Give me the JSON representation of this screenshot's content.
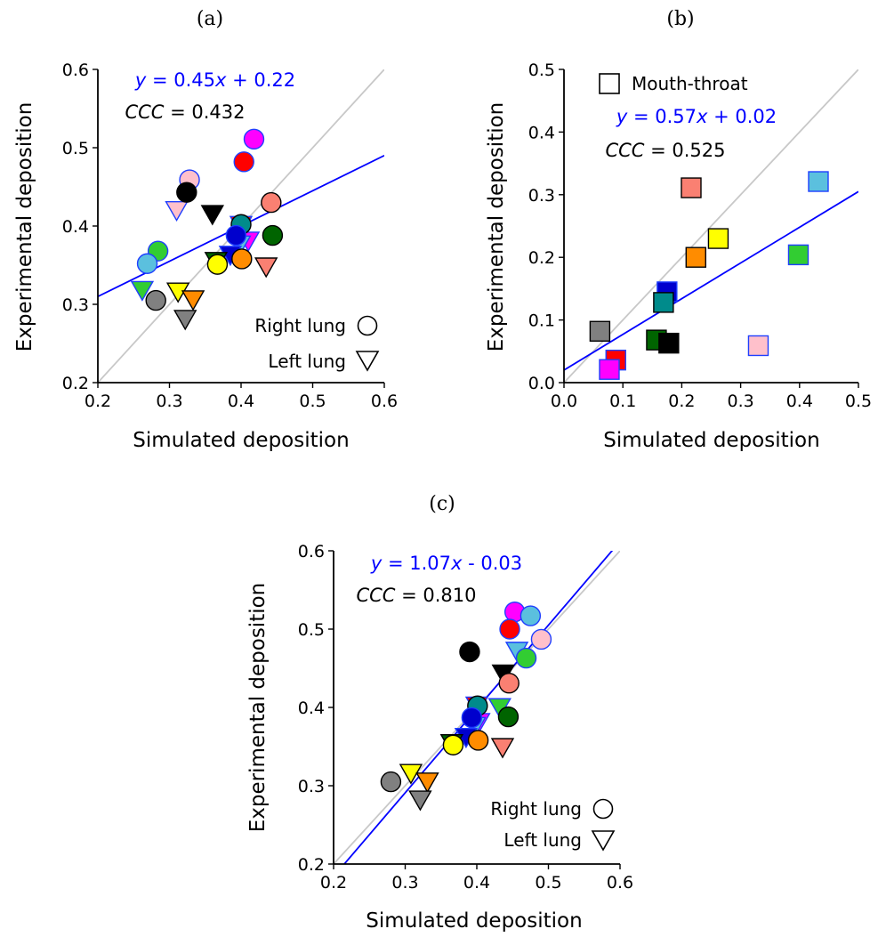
{
  "colors": {
    "fit_line": "#0000ff",
    "identity_line": "#c8c8c8",
    "axis": "#000000"
  },
  "chart_data": [
    {
      "type": "scatter",
      "panel_label": "(a)",
      "xlabel": "Simulated deposition",
      "ylabel": "Experimental deposition",
      "xlim": [
        0.2,
        0.6
      ],
      "ylim": [
        0.2,
        0.6
      ],
      "xticks": [
        "0.2",
        "0.3",
        "0.4",
        "0.5",
        "0.6"
      ],
      "yticks": [
        "0.2",
        "0.3",
        "0.4",
        "0.5",
        "0.6"
      ],
      "grid": false,
      "fit_text": "y = 0.45x + 0.22",
      "fit": {
        "slope": 0.45,
        "intercept": 0.22
      },
      "ccc_text": "CCC = 0.432",
      "legend": [
        {
          "label": "Right lung",
          "marker": "circle"
        },
        {
          "label": "Left lung",
          "marker": "triangle-down"
        }
      ],
      "series": [
        {
          "marker": "circle",
          "points": [
            {
              "x": 0.418,
              "y": 0.511,
              "color": "#ff00ff"
            },
            {
              "x": 0.404,
              "y": 0.482,
              "color": "#ff0000"
            },
            {
              "x": 0.328,
              "y": 0.459,
              "color": "#ffc0cb"
            },
            {
              "x": 0.324,
              "y": 0.443,
              "color": "#000000"
            },
            {
              "x": 0.442,
              "y": 0.43,
              "color": "#fa8072"
            },
            {
              "x": 0.4,
              "y": 0.402,
              "color": "#008b8b"
            },
            {
              "x": 0.444,
              "y": 0.388,
              "color": "#006400"
            },
            {
              "x": 0.393,
              "y": 0.388,
              "color": "#0000cd"
            },
            {
              "x": 0.284,
              "y": 0.368,
              "color": "#32cd32"
            },
            {
              "x": 0.269,
              "y": 0.352,
              "color": "#5bc0de"
            },
            {
              "x": 0.401,
              "y": 0.358,
              "color": "#ff8c00"
            },
            {
              "x": 0.367,
              "y": 0.351,
              "color": "#ffff00"
            },
            {
              "x": 0.281,
              "y": 0.305,
              "color": "#808080"
            }
          ]
        },
        {
          "marker": "triangle-down",
          "points": [
            {
              "x": 0.31,
              "y": 0.422,
              "color": "#ffc0cb"
            },
            {
              "x": 0.36,
              "y": 0.417,
              "color": "#000000"
            },
            {
              "x": 0.4,
              "y": 0.403,
              "color": "#ff0000"
            },
            {
              "x": 0.41,
              "y": 0.383,
              "color": "#ff00ff"
            },
            {
              "x": 0.398,
              "y": 0.378,
              "color": "#5bc0de"
            },
            {
              "x": 0.385,
              "y": 0.365,
              "color": "#0000cd"
            },
            {
              "x": 0.365,
              "y": 0.357,
              "color": "#006400"
            },
            {
              "x": 0.435,
              "y": 0.35,
              "color": "#fa8072"
            },
            {
              "x": 0.262,
              "y": 0.32,
              "color": "#32cd32"
            },
            {
              "x": 0.312,
              "y": 0.318,
              "color": "#ffff00"
            },
            {
              "x": 0.333,
              "y": 0.308,
              "color": "#ff8c00"
            },
            {
              "x": 0.322,
              "y": 0.283,
              "color": "#808080"
            }
          ]
        }
      ]
    },
    {
      "type": "scatter",
      "panel_label": "(b)",
      "xlabel": "Simulated deposition",
      "ylabel": "Experimental deposition",
      "xlim": [
        0.0,
        0.5
      ],
      "ylim": [
        0.0,
        0.5
      ],
      "xticks": [
        "0.0",
        "0.1",
        "0.2",
        "0.3",
        "0.4",
        "0.5"
      ],
      "yticks": [
        "0.0",
        "0.1",
        "0.2",
        "0.3",
        "0.4",
        "0.5"
      ],
      "grid": false,
      "fit_text": "y = 0.57x + 0.02",
      "fit": {
        "slope": 0.57,
        "intercept": 0.02
      },
      "ccc_text": "CCC = 0.525",
      "legend": [
        {
          "label": "Mouth-throat",
          "marker": "square"
        }
      ],
      "series": [
        {
          "marker": "square",
          "points": [
            {
              "x": 0.432,
              "y": 0.321,
              "color": "#5bc0de"
            },
            {
              "x": 0.216,
              "y": 0.311,
              "color": "#fa8072"
            },
            {
              "x": 0.262,
              "y": 0.23,
              "color": "#ffff00"
            },
            {
              "x": 0.224,
              "y": 0.2,
              "color": "#ff8c00"
            },
            {
              "x": 0.398,
              "y": 0.204,
              "color": "#32cd32"
            },
            {
              "x": 0.175,
              "y": 0.145,
              "color": "#0000cd"
            },
            {
              "x": 0.169,
              "y": 0.128,
              "color": "#008b8b"
            },
            {
              "x": 0.061,
              "y": 0.082,
              "color": "#808080"
            },
            {
              "x": 0.157,
              "y": 0.068,
              "color": "#006400"
            },
            {
              "x": 0.178,
              "y": 0.063,
              "color": "#000000"
            },
            {
              "x": 0.33,
              "y": 0.059,
              "color": "#ffc0cb"
            },
            {
              "x": 0.088,
              "y": 0.036,
              "color": "#ff0000"
            },
            {
              "x": 0.077,
              "y": 0.021,
              "color": "#ff00ff"
            }
          ]
        }
      ]
    },
    {
      "type": "scatter",
      "panel_label": "(c)",
      "xlabel": "Simulated deposition",
      "ylabel": "Experimental deposition",
      "xlim": [
        0.2,
        0.6
      ],
      "ylim": [
        0.2,
        0.6
      ],
      "xticks": [
        "0.2",
        "0.3",
        "0.4",
        "0.5",
        "0.6"
      ],
      "yticks": [
        "0.2",
        "0.3",
        "0.4",
        "0.5",
        "0.6"
      ],
      "grid": false,
      "fit_text": "y = 1.07x - 0.03",
      "fit": {
        "slope": 1.07,
        "intercept": -0.03
      },
      "ccc_text": "CCC = 0.810",
      "legend": [
        {
          "label": "Right lung",
          "marker": "circle"
        },
        {
          "label": "Left lung",
          "marker": "triangle-down"
        }
      ],
      "series": [
        {
          "marker": "circle",
          "points": [
            {
              "x": 0.453,
              "y": 0.522,
              "color": "#ff00ff"
            },
            {
              "x": 0.475,
              "y": 0.517,
              "color": "#5bc0de"
            },
            {
              "x": 0.446,
              "y": 0.5,
              "color": "#ff0000"
            },
            {
              "x": 0.49,
              "y": 0.487,
              "color": "#ffc0cb"
            },
            {
              "x": 0.39,
              "y": 0.471,
              "color": "#000000"
            },
            {
              "x": 0.469,
              "y": 0.463,
              "color": "#32cd32"
            },
            {
              "x": 0.445,
              "y": 0.431,
              "color": "#fa8072"
            },
            {
              "x": 0.401,
              "y": 0.402,
              "color": "#008b8b"
            },
            {
              "x": 0.444,
              "y": 0.388,
              "color": "#006400"
            },
            {
              "x": 0.393,
              "y": 0.387,
              "color": "#0000cd"
            },
            {
              "x": 0.402,
              "y": 0.358,
              "color": "#ff8c00"
            },
            {
              "x": 0.367,
              "y": 0.352,
              "color": "#ffff00"
            },
            {
              "x": 0.28,
              "y": 0.305,
              "color": "#808080"
            }
          ]
        },
        {
          "marker": "triangle-down",
          "points": [
            {
              "x": 0.456,
              "y": 0.474,
              "color": "#5bc0de"
            },
            {
              "x": 0.437,
              "y": 0.445,
              "color": "#000000"
            },
            {
              "x": 0.4,
              "y": 0.404,
              "color": "#ff0000"
            },
            {
              "x": 0.432,
              "y": 0.402,
              "color": "#32cd32"
            },
            {
              "x": 0.403,
              "y": 0.383,
              "color": "#ff00ff"
            },
            {
              "x": 0.397,
              "y": 0.378,
              "color": "#5bc0de"
            },
            {
              "x": 0.385,
              "y": 0.364,
              "color": "#0000cd"
            },
            {
              "x": 0.365,
              "y": 0.356,
              "color": "#006400"
            },
            {
              "x": 0.436,
              "y": 0.351,
              "color": "#fa8072"
            },
            {
              "x": 0.308,
              "y": 0.318,
              "color": "#ffff00"
            },
            {
              "x": 0.331,
              "y": 0.307,
              "color": "#ff8c00"
            },
            {
              "x": 0.321,
              "y": 0.284,
              "color": "#808080"
            }
          ]
        }
      ]
    }
  ]
}
